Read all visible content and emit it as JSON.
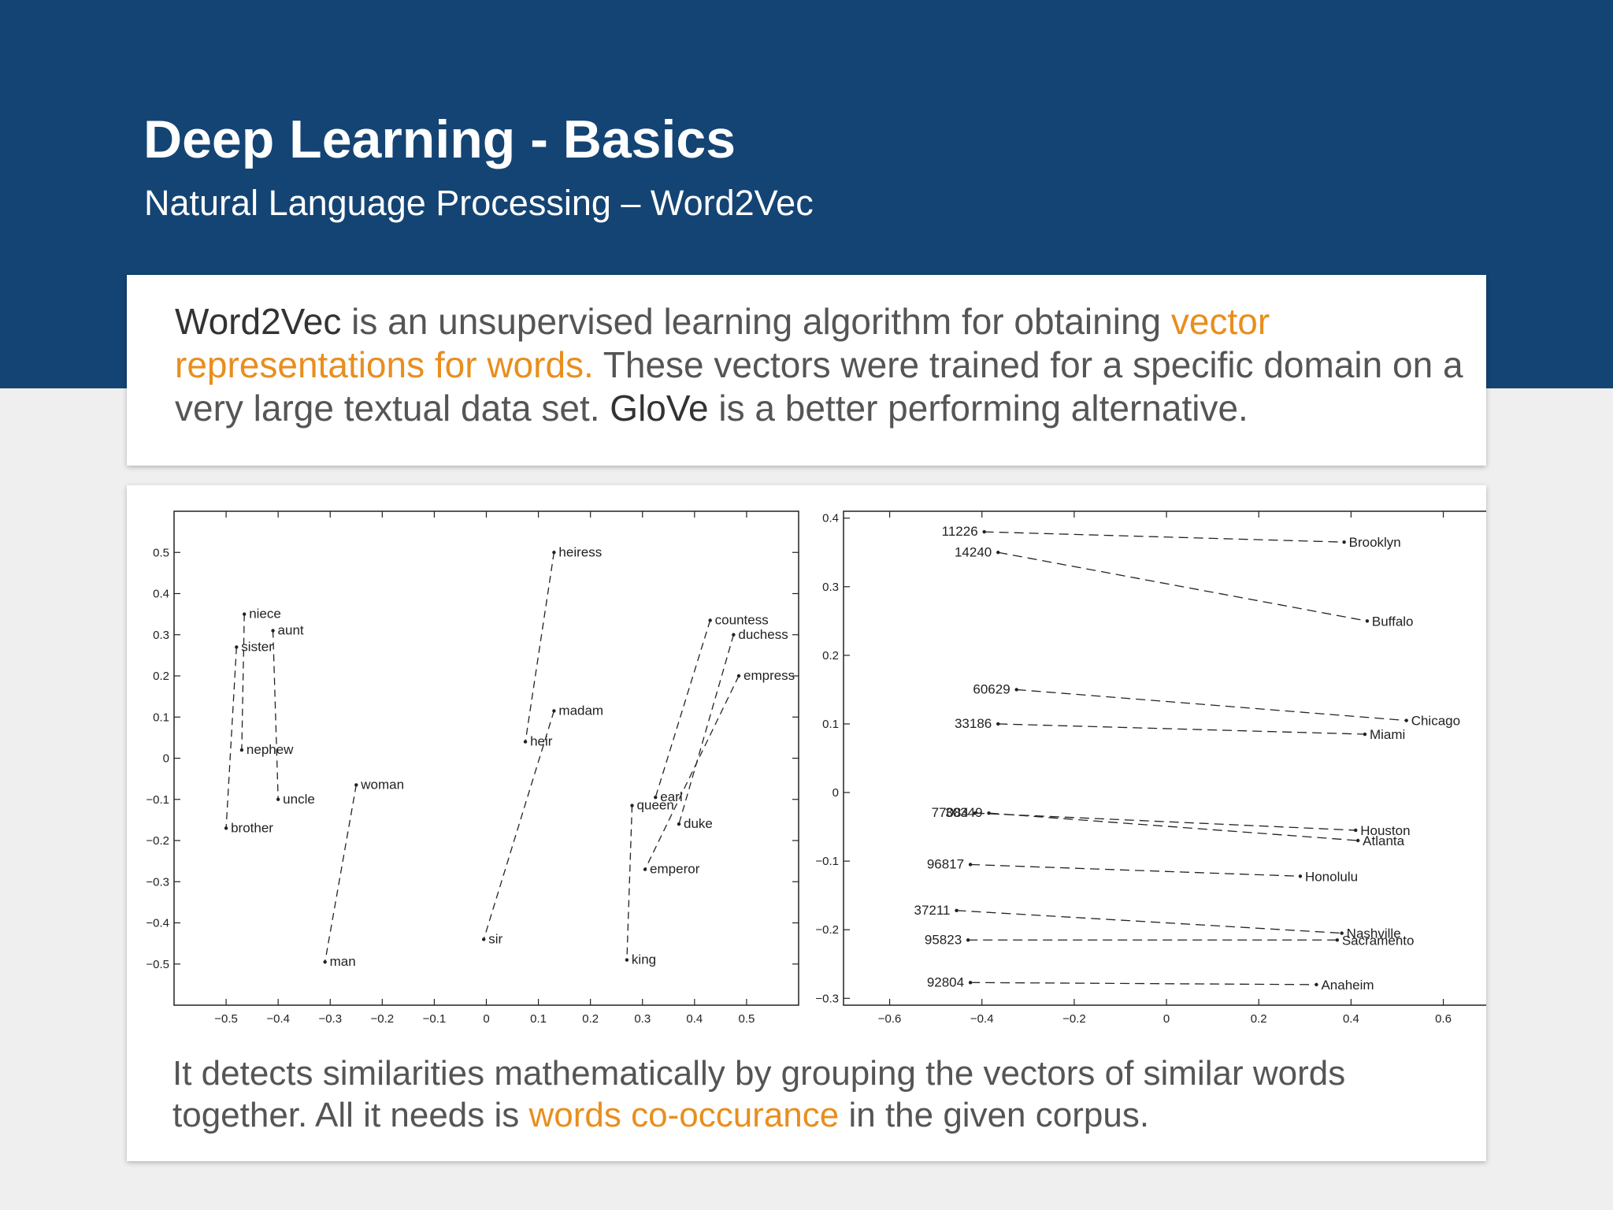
{
  "header": {
    "title": "Deep Learning - Basics",
    "subtitle": "Natural Language Processing – Word2Vec"
  },
  "intro": {
    "term1": "Word2Vec",
    "text1": " is an unsupervised learning algorithm for obtaining ",
    "highlight1": "vector representations for words.",
    "text2": " These vectors were trained for a specific domain on a very large textual data set. ",
    "term2": "GloVe",
    "text3": " is a better performing alternative."
  },
  "footer": {
    "text1": "It detects similarities mathematically by grouping the vectors of similar words together. All it needs is ",
    "highlight": "words co-occurance",
    "text2": " in the given corpus."
  },
  "colors": {
    "header_bg": "#144473",
    "accent": "#e88e1e",
    "body_text": "#555555",
    "page_bg": "#efeff0"
  },
  "chart_data": [
    {
      "type": "scatter",
      "title": "",
      "xlabel": "",
      "ylabel": "",
      "xlim": [
        -0.6,
        0.6
      ],
      "ylim": [
        -0.6,
        0.6
      ],
      "xticks": [
        "−0.5",
        "−0.4",
        "−0.3",
        "−0.2",
        "−0.1",
        "0",
        "0.1",
        "0.2",
        "0.3",
        "0.4",
        "0.5"
      ],
      "yticks": [
        "0.5",
        "0.4",
        "0.3",
        "0.2",
        "0.1",
        "0",
        "−0.1",
        "−0.2",
        "−0.3",
        "−0.4",
        "−0.5"
      ],
      "points": [
        {
          "label": "niece",
          "x": -0.465,
          "y": 0.35
        },
        {
          "label": "aunt",
          "x": -0.41,
          "y": 0.31
        },
        {
          "label": "sister",
          "x": -0.48,
          "y": 0.27
        },
        {
          "label": "nephew",
          "x": -0.47,
          "y": 0.02
        },
        {
          "label": "uncle",
          "x": -0.4,
          "y": -0.1
        },
        {
          "label": "brother",
          "x": -0.5,
          "y": -0.17
        },
        {
          "label": "woman",
          "x": -0.25,
          "y": -0.065
        },
        {
          "label": "man",
          "x": -0.31,
          "y": -0.495
        },
        {
          "label": "heiress",
          "x": 0.13,
          "y": 0.5
        },
        {
          "label": "madam",
          "x": 0.13,
          "y": 0.115
        },
        {
          "label": "heir",
          "x": 0.075,
          "y": 0.04
        },
        {
          "label": "sir",
          "x": -0.005,
          "y": -0.44
        },
        {
          "label": "countess",
          "x": 0.43,
          "y": 0.335
        },
        {
          "label": "duchess",
          "x": 0.475,
          "y": 0.3
        },
        {
          "label": "empress",
          "x": 0.485,
          "y": 0.2
        },
        {
          "label": "earl",
          "x": 0.325,
          "y": -0.095
        },
        {
          "label": "queen",
          "x": 0.28,
          "y": -0.115
        },
        {
          "label": "duke",
          "x": 0.37,
          "y": -0.16
        },
        {
          "label": "emperor",
          "x": 0.305,
          "y": -0.27
        },
        {
          "label": "king",
          "x": 0.27,
          "y": -0.49
        }
      ],
      "links": [
        [
          "sister",
          "brother"
        ],
        [
          "niece",
          "nephew"
        ],
        [
          "aunt",
          "uncle"
        ],
        [
          "woman",
          "man"
        ],
        [
          "heiress",
          "heir"
        ],
        [
          "madam",
          "sir"
        ],
        [
          "queen",
          "king"
        ],
        [
          "countess",
          "earl"
        ],
        [
          "duchess",
          "duke"
        ],
        [
          "empress",
          "emperor"
        ]
      ]
    },
    {
      "type": "scatter",
      "title": "",
      "xlabel": "",
      "ylabel": "",
      "xlim": [
        -0.7,
        0.71
      ],
      "ylim": [
        -0.31,
        0.41
      ],
      "xticks": [
        "−0.6",
        "−0.4",
        "−0.2",
        "0",
        "0.2",
        "0.4",
        "0.6"
      ],
      "yticks": [
        "0.4",
        "0.3",
        "0.2",
        "0.1",
        "0",
        "−0.1",
        "−0.2",
        "−0.3"
      ],
      "pairs": [
        {
          "code": "11226",
          "zx": -0.395,
          "zy": 0.38,
          "city": "Brooklyn",
          "cx": 0.385,
          "cy": 0.365
        },
        {
          "code": "14240",
          "zx": -0.365,
          "zy": 0.35,
          "city": "Buffalo",
          "cx": 0.435,
          "cy": 0.25
        },
        {
          "code": "60629",
          "zx": -0.325,
          "zy": 0.15,
          "city": "Chicago",
          "cx": 0.52,
          "cy": 0.105
        },
        {
          "code": "33186",
          "zx": -0.365,
          "zy": 0.1,
          "city": "Miami",
          "cx": 0.43,
          "cy": 0.085
        },
        {
          "code": "77084",
          "zx": -0.415,
          "zy": -0.03,
          "city": "Houston",
          "cx": 0.41,
          "cy": -0.055
        },
        {
          "code": "30349",
          "zx": -0.385,
          "zy": -0.03,
          "city": "Atlanta",
          "cx": 0.415,
          "cy": -0.07
        },
        {
          "code": "96817",
          "zx": -0.425,
          "zy": -0.105,
          "city": "Honolulu",
          "cx": 0.29,
          "cy": -0.122
        },
        {
          "code": "37211",
          "zx": -0.455,
          "zy": -0.172,
          "city": "Nashville",
          "cx": 0.38,
          "cy": -0.205
        },
        {
          "code": "95823",
          "zx": -0.43,
          "zy": -0.215,
          "city": "Sacramento",
          "cx": 0.37,
          "cy": -0.215
        },
        {
          "code": "92804",
          "zx": -0.425,
          "zy": -0.277,
          "city": "Anaheim",
          "cx": 0.325,
          "cy": -0.28
        }
      ]
    }
  ]
}
